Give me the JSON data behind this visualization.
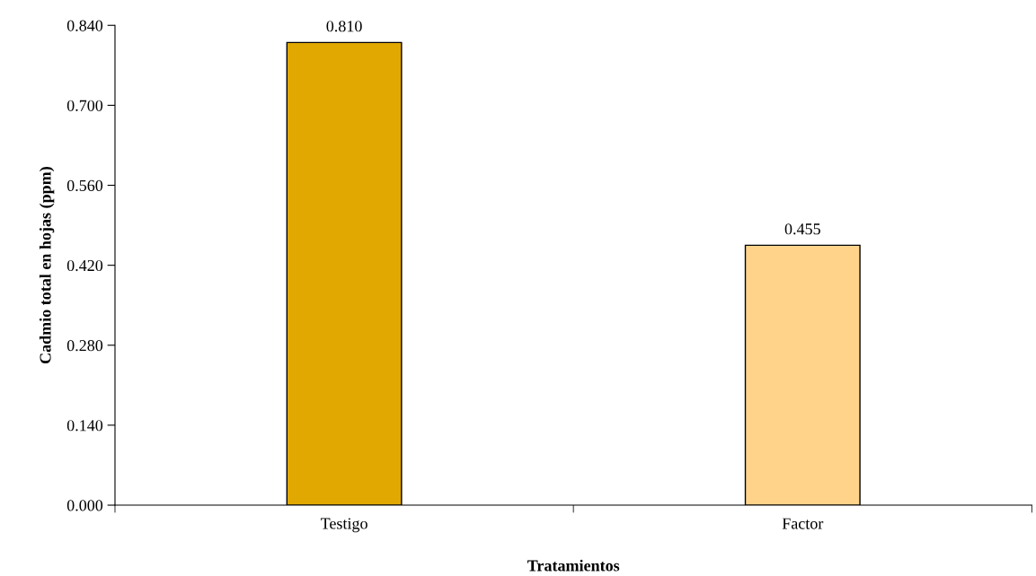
{
  "chart_data": {
    "type": "bar",
    "xlabel": "Tratamientos",
    "ylabel": "Cadmio total en hojas (ppm)",
    "categories": [
      "Testigo",
      "Factor"
    ],
    "values": [
      0.81,
      0.455
    ],
    "colors": [
      "#e0a800",
      "#ffd38a"
    ],
    "value_labels": [
      "0.810",
      "0.455"
    ],
    "ylim": [
      0,
      0.84
    ],
    "yticks": [
      {
        "value": 0,
        "label": "0.000"
      },
      {
        "value": 0.14,
        "label": "0.140"
      },
      {
        "value": 0.28,
        "label": "0.280"
      },
      {
        "value": 0.42,
        "label": "0.420"
      },
      {
        "value": 0.56,
        "label": "0.560"
      },
      {
        "value": 0.7,
        "label": "0.700"
      },
      {
        "value": 0.84,
        "label": "0.840"
      }
    ],
    "grid": false,
    "legend": false
  }
}
